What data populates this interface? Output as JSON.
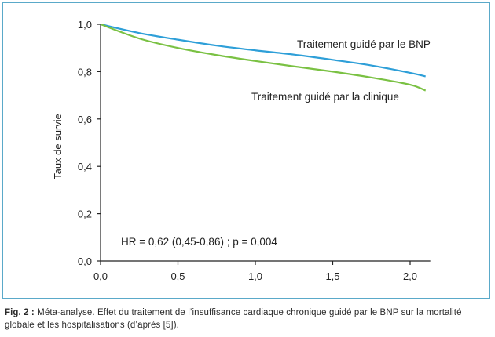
{
  "chart_data": {
    "type": "line",
    "xlabel": "",
    "ylabel": "Taux de survie",
    "xlim": [
      0,
      2.1
    ],
    "ylim": [
      0,
      1.0
    ],
    "x_ticks": [
      "0,0",
      "0,5",
      "1,0",
      "1,5",
      "2,0"
    ],
    "x_tick_values": [
      0,
      0.5,
      1.0,
      1.5,
      2.0
    ],
    "y_ticks": [
      "0,0",
      "0,2",
      "0,4",
      "0,6",
      "0,8",
      "1,0"
    ],
    "y_tick_values": [
      0,
      0.2,
      0.4,
      0.6,
      0.8,
      1.0
    ],
    "grid": false,
    "series": [
      {
        "name": "Traitement guidé par le BNP",
        "color": "#2e9fd8",
        "x": [
          0,
          0.25,
          0.5,
          0.75,
          1.0,
          1.25,
          1.5,
          1.75,
          2.0,
          2.1
        ],
        "y": [
          1.0,
          0.963,
          0.935,
          0.91,
          0.89,
          0.872,
          0.85,
          0.826,
          0.795,
          0.78
        ]
      },
      {
        "name": "Traitement guidé par la clinique",
        "color": "#7ac143",
        "x": [
          0,
          0.25,
          0.5,
          0.75,
          1.0,
          1.25,
          1.5,
          1.75,
          2.0,
          2.1
        ],
        "y": [
          1.0,
          0.94,
          0.9,
          0.87,
          0.845,
          0.822,
          0.8,
          0.775,
          0.745,
          0.72
        ]
      }
    ],
    "annotation": "HR = 0,62 (0,45-0,86) ; p = 0,004"
  },
  "caption": {
    "label": "Fig. 2 :",
    "text": " Méta-analyse. Effet du traitement de l’insuffisance cardiaque chronique guidé par le BNP sur la mortalité globale et les hospitalisations (d’après [5])."
  }
}
